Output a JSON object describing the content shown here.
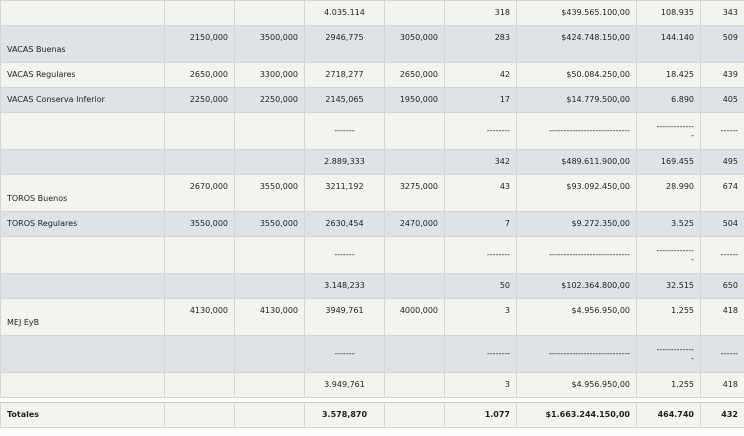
{
  "rows": [
    {
      "style": "light",
      "label": "",
      "label_pos": "mid",
      "c1": "",
      "c2": "",
      "c3": "4.035.114",
      "c4": "",
      "c5": "318",
      "c6": "$439.565.100,00",
      "c7": "108.935",
      "c8": "343"
    },
    {
      "style": "dark",
      "label": "VACAS Buenas",
      "label_pos": "bottom",
      "c1": "2150,000",
      "c2": "3500,000",
      "c3": "2946,775",
      "c4": "3050,000",
      "c5": "283",
      "c6": "$424.748.150,00",
      "c7": "144.140",
      "c8": "509"
    },
    {
      "style": "light",
      "label": "VACAS Regulares",
      "label_pos": "mid",
      "c1": "2650,000",
      "c2": "3300,000",
      "c3": "2718,277",
      "c4": "2650,000",
      "c5": "42",
      "c6": "$50.084.250,00",
      "c7": "18.425",
      "c8": "439"
    },
    {
      "style": "dark",
      "label": "VACAS Conserva Inferior",
      "label_pos": "mid",
      "c1": "2250,000",
      "c2": "2250,000",
      "c3": "2145,065",
      "c4": "1950,000",
      "c5": "17",
      "c6": "$14.779.500,00",
      "c7": "6.890",
      "c8": "405"
    },
    {
      "style": "light",
      "dash": true,
      "label": "",
      "c1": "",
      "c2": "",
      "c3": "-------",
      "c4": "",
      "c5": "--------",
      "c6": "----------------------------",
      "c7": "-------------",
      "c7b": "-",
      "c8": "------"
    },
    {
      "style": "dark",
      "label": "",
      "label_pos": "mid",
      "c1": "",
      "c2": "",
      "c3": "2.889,333",
      "c4": "",
      "c5": "342",
      "c6": "$489.611.900,00",
      "c7": "169.455",
      "c8": "495"
    },
    {
      "style": "light",
      "label": "TOROS Buenos",
      "label_pos": "bottom",
      "c1": "2670,000",
      "c2": "3550,000",
      "c3": "3211,192",
      "c4": "3275,000",
      "c5": "43",
      "c6": "$93.092.450,00",
      "c7": "28.990",
      "c8": "674"
    },
    {
      "style": "dark",
      "label": "TOROS Regulares",
      "label_pos": "mid",
      "c1": "3550,000",
      "c2": "3550,000",
      "c3": "2630,454",
      "c4": "2470,000",
      "c5": "7",
      "c6": "$9.272.350,00",
      "c7": "3.525",
      "c8": "504"
    },
    {
      "style": "light",
      "dash": true,
      "label": "",
      "c1": "",
      "c2": "",
      "c3": "-------",
      "c4": "",
      "c5": "--------",
      "c6": "----------------------------",
      "c7": "-------------",
      "c7b": "-",
      "c8": "------"
    },
    {
      "style": "dark",
      "label": "",
      "label_pos": "mid",
      "c1": "",
      "c2": "",
      "c3": "3.148,233",
      "c4": "",
      "c5": "50",
      "c6": "$102.364.800,00",
      "c7": "32.515",
      "c8": "650"
    },
    {
      "style": "light",
      "label": "MEJ EyB",
      "label_pos": "bottom",
      "c1": "4130,000",
      "c2": "4130,000",
      "c3": "3949,761",
      "c4": "4000,000",
      "c5": "3",
      "c6": "$4.956.950,00",
      "c7": "1.255",
      "c8": "418"
    },
    {
      "style": "dark",
      "dash": true,
      "label": "",
      "c1": "",
      "c2": "",
      "c3": "-------",
      "c4": "",
      "c5": "--------",
      "c6": "----------------------------",
      "c7": "-------------",
      "c7b": "-",
      "c8": "------"
    },
    {
      "style": "light",
      "label": "",
      "label_pos": "mid",
      "c1": "",
      "c2": "",
      "c3": "3.949,761",
      "c4": "",
      "c5": "3",
      "c6": "$4.956.950,00",
      "c7": "1.255",
      "c8": "418"
    }
  ],
  "totals": {
    "label": "Totales",
    "c3": "3.578,870",
    "c5": "1.077",
    "c6": "$1.663.244.150,00",
    "c7": "464.740",
    "c8": "432"
  }
}
